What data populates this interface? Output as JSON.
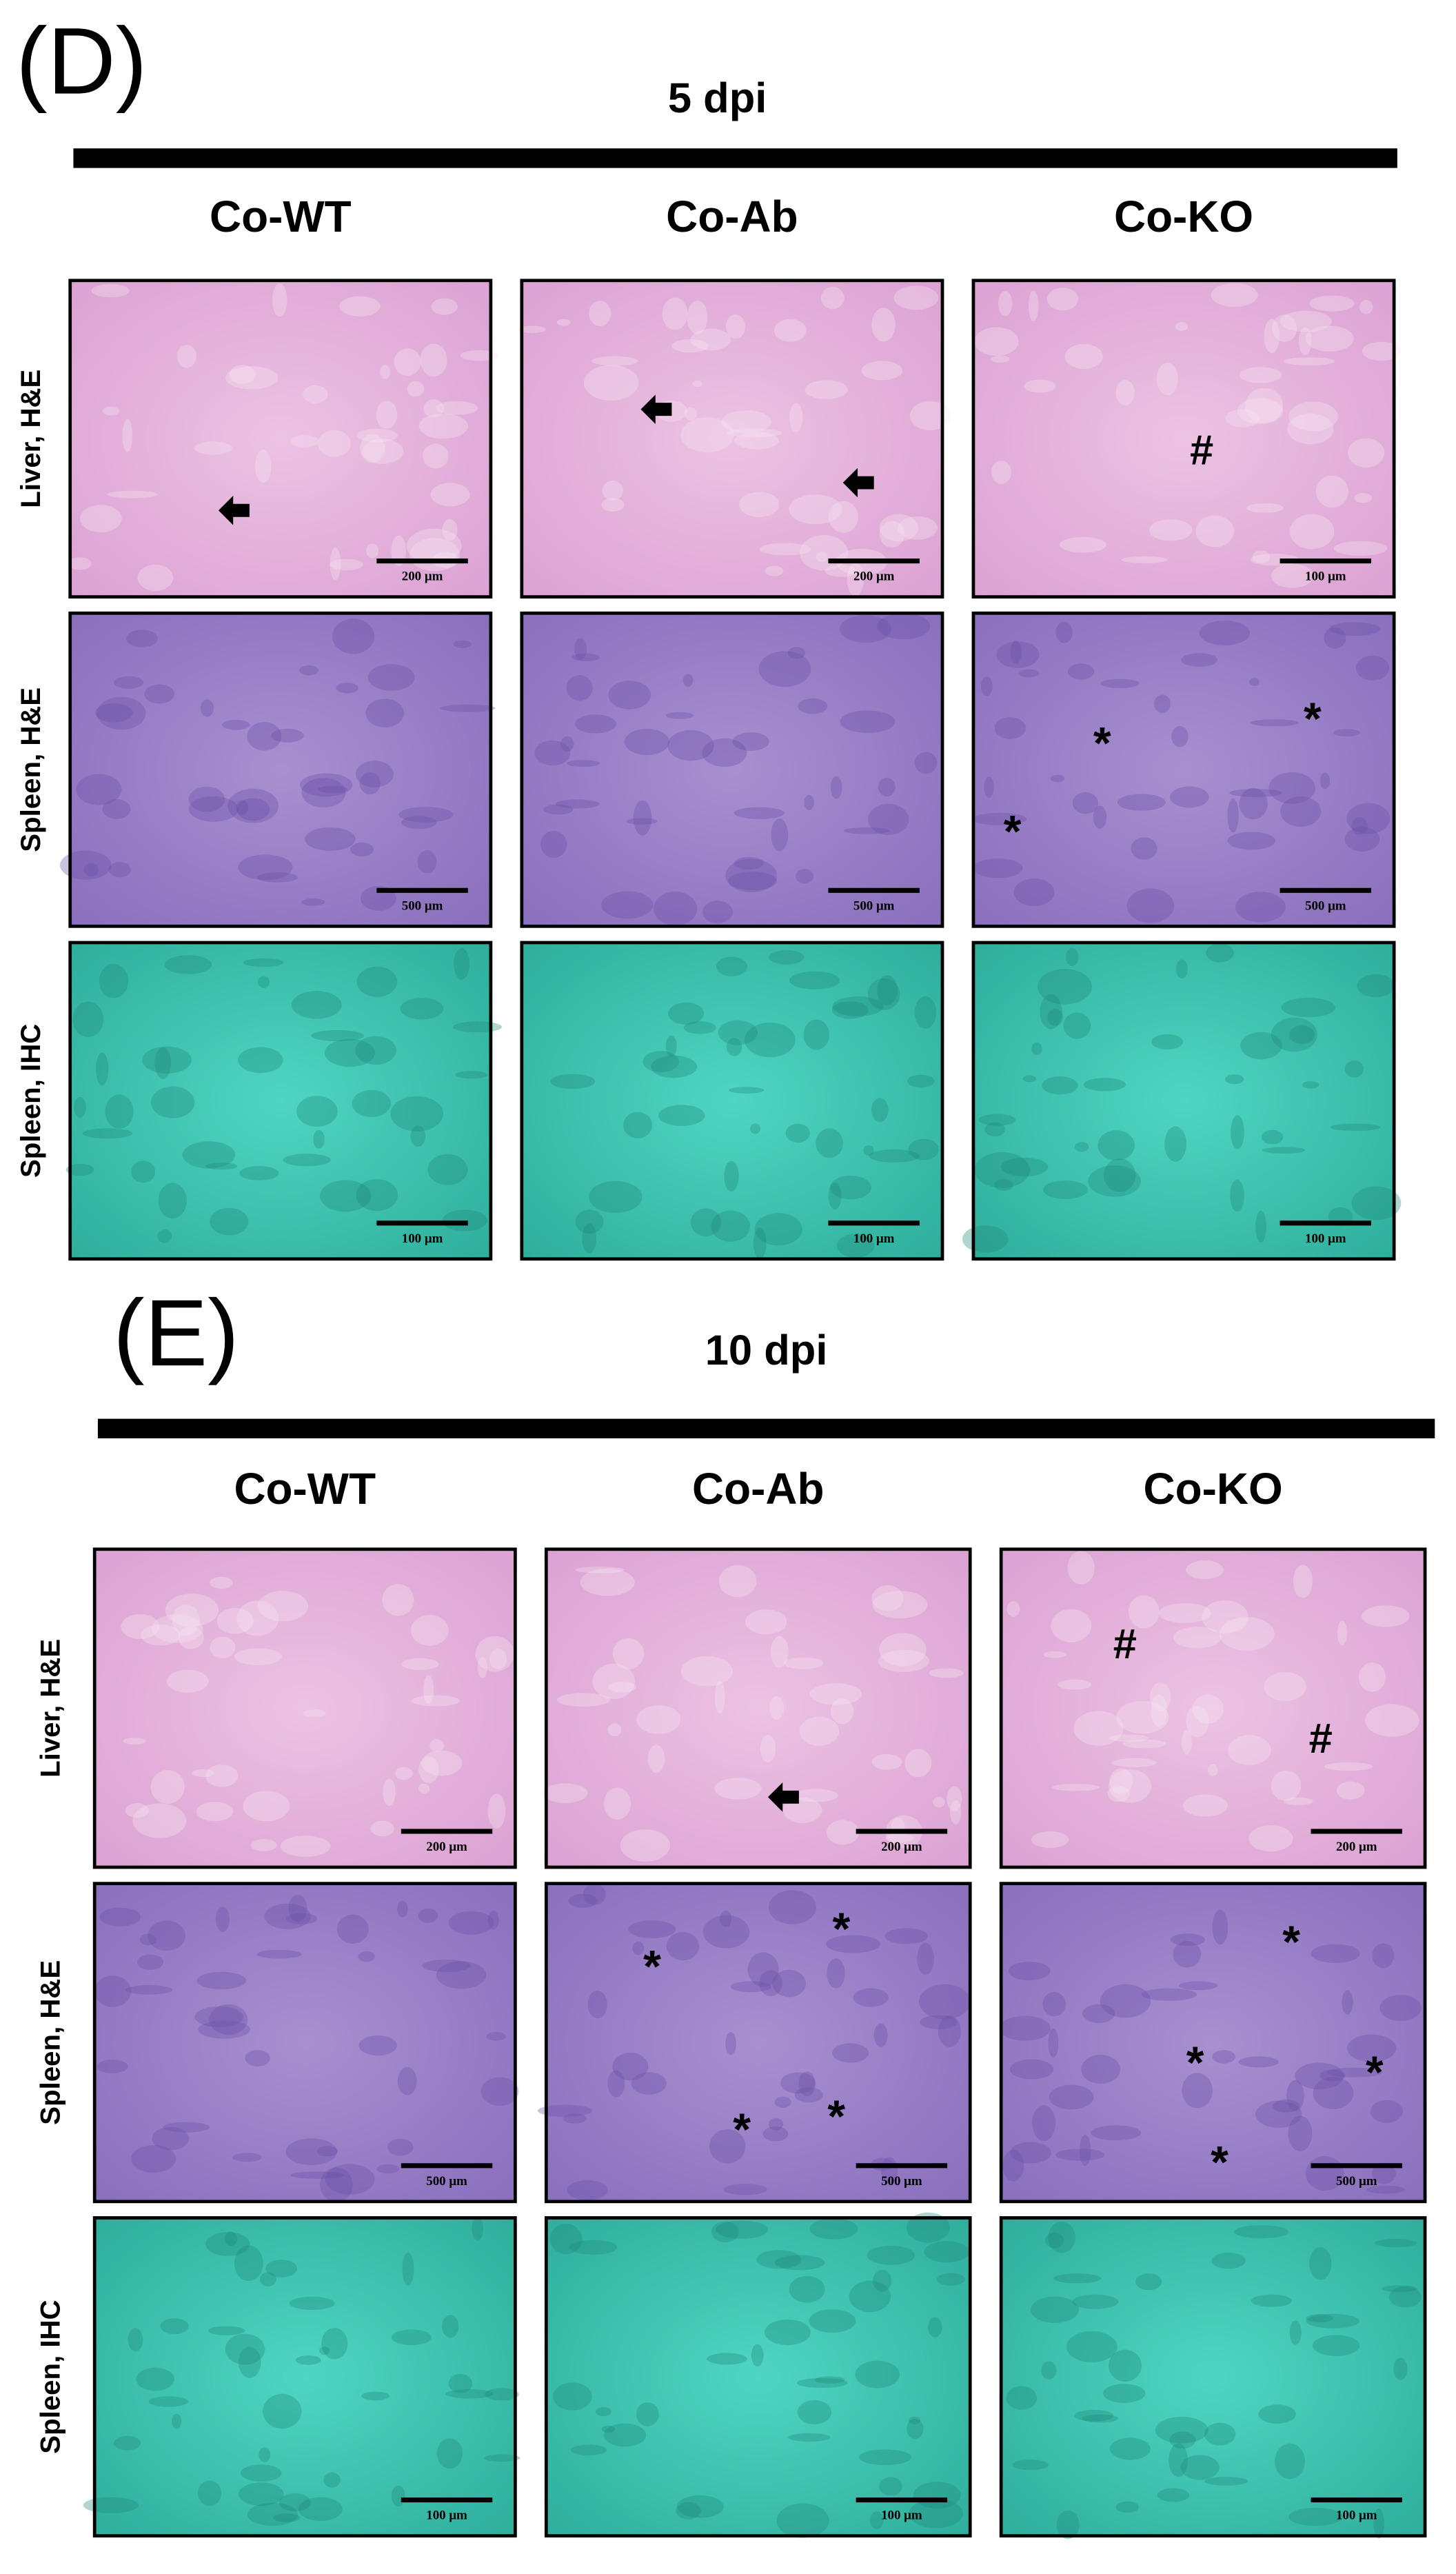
{
  "panels": [
    {
      "label": "(D)",
      "timepoint": "5 dpi",
      "columns": [
        "Co-WT",
        "Co-Ab",
        "Co-KO"
      ],
      "rows": [
        {
          "label": "Liver, H&E",
          "cells": [
            {
              "scale": "200 μm",
              "marks": []
            },
            {
              "scale": "200 μm",
              "marks": []
            },
            {
              "scale": "100 μm",
              "marks": [
                "#"
              ]
            }
          ]
        },
        {
          "label": "Spleen, H&E",
          "cells": [
            {
              "scale": "500 μm",
              "marks": []
            },
            {
              "scale": "500 μm",
              "marks": []
            },
            {
              "scale": "500 μm",
              "marks": [
                "*",
                "*",
                "*"
              ]
            }
          ]
        },
        {
          "label": "Spleen, IHC",
          "cells": [
            {
              "scale": "100 μm",
              "marks": []
            },
            {
              "scale": "100 μm",
              "marks": []
            },
            {
              "scale": "100 μm",
              "marks": []
            }
          ]
        }
      ]
    },
    {
      "label": "(E)",
      "timepoint": "10 dpi",
      "columns": [
        "Co-WT",
        "Co-Ab",
        "Co-KO"
      ],
      "rows": [
        {
          "label": "Liver, H&E",
          "cells": [
            {
              "scale": "200 μm",
              "marks": []
            },
            {
              "scale": "200 μm",
              "marks": []
            },
            {
              "scale": "200 μm",
              "marks": [
                "#",
                "#"
              ]
            }
          ]
        },
        {
          "label": "Spleen, H&E",
          "cells": [
            {
              "scale": "500 μm",
              "marks": []
            },
            {
              "scale": "500 μm",
              "marks": [
                "*",
                "*",
                "*",
                "*"
              ]
            },
            {
              "scale": "500 μm",
              "marks": [
                "*",
                "*",
                "*",
                "*"
              ]
            }
          ]
        },
        {
          "label": "Spleen, IHC",
          "cells": [
            {
              "scale": "100 μm",
              "marks": []
            },
            {
              "scale": "100 μm",
              "marks": []
            },
            {
              "scale": "100 μm",
              "marks": []
            }
          ]
        }
      ]
    }
  ]
}
